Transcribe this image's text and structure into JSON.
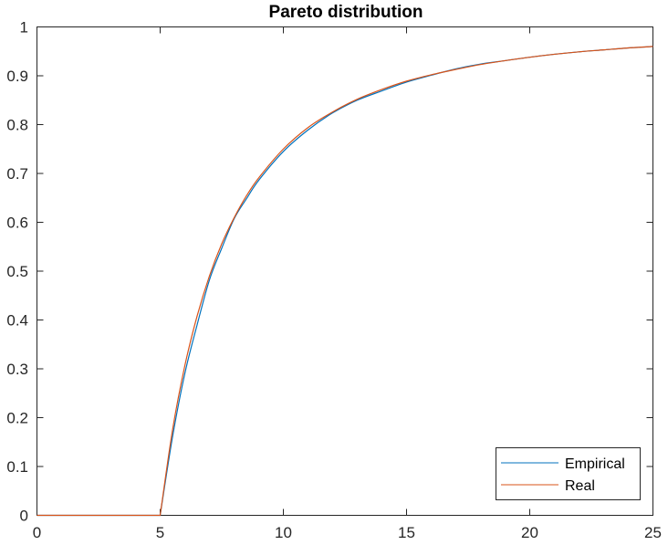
{
  "chart_data": {
    "type": "line",
    "title": "Pareto distribution",
    "xlabel": "",
    "ylabel": "",
    "xlim": [
      0,
      25
    ],
    "ylim": [
      0,
      1
    ],
    "x_ticks": [
      "0",
      "5",
      "10",
      "15",
      "20",
      "25"
    ],
    "y_ticks": [
      "0",
      "0.1",
      "0.2",
      "0.3",
      "0.4",
      "0.5",
      "0.6",
      "0.7",
      "0.8",
      "0.9",
      "1"
    ],
    "grid": false,
    "legend_position": "bottom-right",
    "series": [
      {
        "name": "Empirical",
        "color": "#0072BD",
        "x": [
          0,
          5,
          5.5,
          6,
          6.5,
          7,
          7.5,
          8,
          8.5,
          9,
          10,
          11,
          12,
          13,
          14,
          15,
          16,
          17,
          18,
          19,
          20,
          21,
          22,
          23,
          24,
          25
        ],
        "y": [
          0,
          0,
          0.16,
          0.29,
          0.39,
          0.482,
          0.547,
          0.607,
          0.648,
          0.686,
          0.745,
          0.789,
          0.824,
          0.85,
          0.869,
          0.887,
          0.901,
          0.914,
          0.924,
          0.931,
          0.938,
          0.944,
          0.949,
          0.953,
          0.957,
          0.96
        ]
      },
      {
        "name": "Real",
        "color": "#D95319",
        "x": [
          0,
          5,
          5.5,
          6,
          6.5,
          7,
          7.5,
          8,
          8.5,
          9,
          10,
          11,
          12,
          13,
          14,
          15,
          16,
          17,
          18,
          19,
          20,
          21,
          22,
          23,
          24,
          25
        ],
        "y": [
          0,
          0,
          0.174,
          0.306,
          0.408,
          0.49,
          0.556,
          0.609,
          0.654,
          0.691,
          0.75,
          0.794,
          0.826,
          0.852,
          0.872,
          0.889,
          0.902,
          0.913,
          0.923,
          0.931,
          0.938,
          0.944,
          0.949,
          0.953,
          0.957,
          0.96
        ]
      }
    ]
  }
}
